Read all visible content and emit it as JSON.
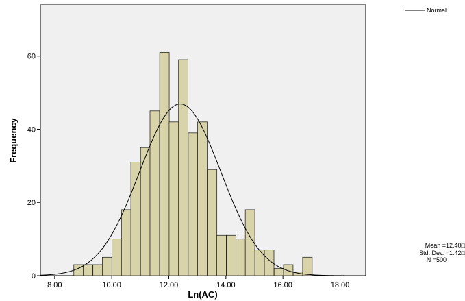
{
  "chart_data": {
    "type": "bar",
    "title": "",
    "xlabel": "Ln(AC)",
    "ylabel": "Frequency",
    "xlim": [
      7.5,
      18.9
    ],
    "ylim": [
      0,
      74
    ],
    "x_ticks": [
      "8.00",
      "10.00",
      "12.00",
      "14.00",
      "16.00",
      "18.00"
    ],
    "x_tick_values": [
      8,
      10,
      12,
      14,
      16,
      18
    ],
    "y_ticks": [
      "0",
      "20",
      "40",
      "60"
    ],
    "y_tick_values": [
      0,
      20,
      40,
      60
    ],
    "bin_width": 0.334,
    "bins": [
      {
        "start": 8.67,
        "value": 3
      },
      {
        "start": 9.0,
        "value": 3
      },
      {
        "start": 9.34,
        "value": 3
      },
      {
        "start": 9.67,
        "value": 5
      },
      {
        "start": 10.01,
        "value": 10
      },
      {
        "start": 10.34,
        "value": 18
      },
      {
        "start": 10.67,
        "value": 31
      },
      {
        "start": 11.01,
        "value": 35
      },
      {
        "start": 11.34,
        "value": 45
      },
      {
        "start": 11.68,
        "value": 61
      },
      {
        "start": 12.01,
        "value": 42
      },
      {
        "start": 12.34,
        "value": 59
      },
      {
        "start": 12.68,
        "value": 39
      },
      {
        "start": 13.01,
        "value": 42
      },
      {
        "start": 13.35,
        "value": 29
      },
      {
        "start": 13.68,
        "value": 11
      },
      {
        "start": 14.02,
        "value": 11
      },
      {
        "start": 14.35,
        "value": 10
      },
      {
        "start": 14.68,
        "value": 18
      },
      {
        "start": 15.02,
        "value": 7
      },
      {
        "start": 15.35,
        "value": 7
      },
      {
        "start": 15.69,
        "value": 2
      },
      {
        "start": 16.02,
        "value": 3
      },
      {
        "start": 16.36,
        "value": 1
      },
      {
        "start": 16.69,
        "value": 5
      }
    ],
    "normal_curve": {
      "name": "Normal",
      "mean": 12.4,
      "sd": 1.42,
      "n": 500
    },
    "legend": {
      "position": "top-right",
      "entries": [
        "Normal"
      ]
    },
    "stats": [
      "Mean =12.40□",
      "Std. Dev. =1.42□",
      "N =500"
    ],
    "grid": false,
    "colors": {
      "bar_fill": "#d8d3a9",
      "bar_stroke": "#2a2a2a",
      "plot_bg": "#f0f0f0",
      "curve": "#000000"
    }
  }
}
